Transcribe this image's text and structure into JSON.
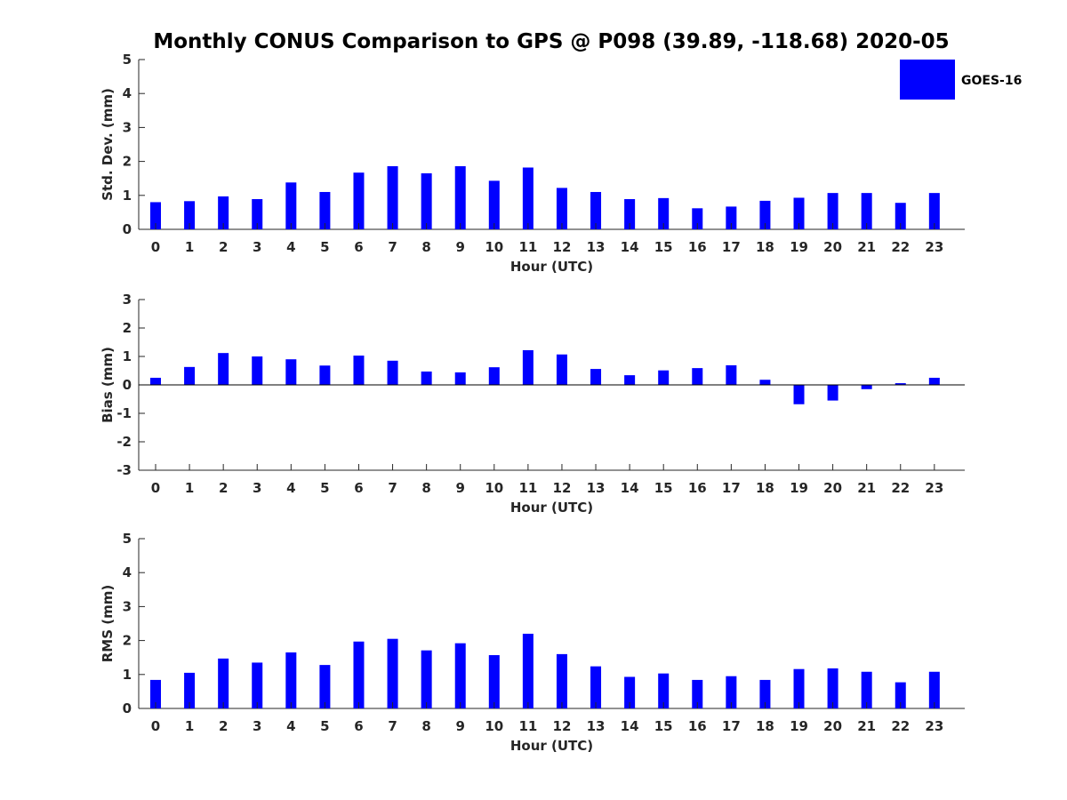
{
  "title": "Monthly CONUS Comparison to GPS @ P098 (39.89, -118.68) 2020-05",
  "legend": {
    "label": "GOES-16",
    "color": "#0000ff",
    "placement": "top-right"
  },
  "chart_data": [
    {
      "type": "bar",
      "xlabel": "Hour (UTC)",
      "ylabel": "Std. Dev. (mm)",
      "ylim": [
        0,
        5
      ],
      "yticks": [
        0,
        1,
        2,
        3,
        4,
        5
      ],
      "categories": [
        "0",
        "1",
        "2",
        "3",
        "4",
        "5",
        "6",
        "7",
        "8",
        "9",
        "10",
        "11",
        "12",
        "13",
        "14",
        "15",
        "16",
        "17",
        "18",
        "19",
        "20",
        "21",
        "22",
        "23"
      ],
      "series": [
        {
          "name": "GOES-16",
          "color": "#0000ff",
          "values": [
            0.8,
            0.83,
            0.97,
            0.89,
            1.38,
            1.1,
            1.67,
            1.86,
            1.65,
            1.86,
            1.43,
            1.82,
            1.22,
            1.1,
            0.89,
            0.92,
            0.62,
            0.67,
            0.84,
            0.93,
            1.07,
            1.07,
            0.78,
            1.07
          ]
        }
      ]
    },
    {
      "type": "bar",
      "xlabel": "Hour (UTC)",
      "ylabel": "Bias (mm)",
      "ylim": [
        -3,
        3
      ],
      "yticks": [
        -3,
        -2,
        -1,
        0,
        1,
        2,
        3
      ],
      "categories": [
        "0",
        "1",
        "2",
        "3",
        "4",
        "5",
        "6",
        "7",
        "8",
        "9",
        "10",
        "11",
        "12",
        "13",
        "14",
        "15",
        "16",
        "17",
        "18",
        "19",
        "20",
        "21",
        "22",
        "23"
      ],
      "series": [
        {
          "name": "GOES-16",
          "color": "#0000ff",
          "values": [
            0.25,
            0.63,
            1.12,
            1.0,
            0.9,
            0.68,
            1.03,
            0.85,
            0.47,
            0.44,
            0.62,
            1.22,
            1.07,
            0.56,
            0.34,
            0.51,
            0.59,
            0.69,
            0.18,
            -0.68,
            -0.55,
            -0.15,
            0.06,
            0.25
          ]
        }
      ]
    },
    {
      "type": "bar",
      "xlabel": "Hour (UTC)",
      "ylabel": "RMS (mm)",
      "ylim": [
        0,
        5
      ],
      "yticks": [
        0,
        1,
        2,
        3,
        4,
        5
      ],
      "categories": [
        "0",
        "1",
        "2",
        "3",
        "4",
        "5",
        "6",
        "7",
        "8",
        "9",
        "10",
        "11",
        "12",
        "13",
        "14",
        "15",
        "16",
        "17",
        "18",
        "19",
        "20",
        "21",
        "22",
        "23"
      ],
      "series": [
        {
          "name": "GOES-16",
          "color": "#0000ff",
          "values": [
            0.84,
            1.05,
            1.47,
            1.35,
            1.65,
            1.28,
            1.97,
            2.05,
            1.71,
            1.92,
            1.57,
            2.2,
            1.6,
            1.24,
            0.93,
            1.03,
            0.84,
            0.95,
            0.84,
            1.16,
            1.18,
            1.08,
            0.77,
            1.08
          ]
        }
      ]
    }
  ]
}
